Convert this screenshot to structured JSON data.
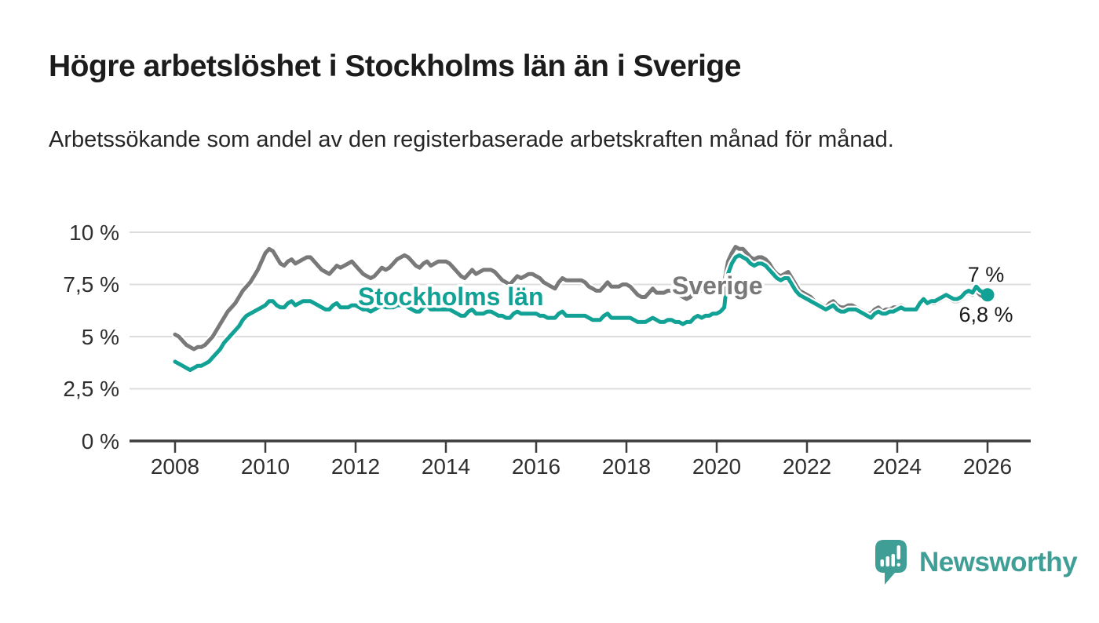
{
  "header": {
    "title": "Högre arbetslöshet i Stockholms län än i Sverige",
    "subtitle": "Arbetssökande som andel av den registerbaserade arbetskraften månad för månad."
  },
  "chart_data": {
    "type": "line",
    "title": "Högre arbetslöshet i Stockholms län än i Sverige",
    "xlabel": "",
    "ylabel": "",
    "unit": "%",
    "ylim": [
      0,
      10
    ],
    "grid": true,
    "x_interval": "monthly",
    "x_range": [
      "2008-01",
      "2026-01"
    ],
    "x_tick_labels": [
      "2008",
      "2010",
      "2012",
      "2014",
      "2016",
      "2018",
      "2020",
      "2022",
      "2024",
      "2026"
    ],
    "y_tick_labels_top_to_bottom": [
      "10 %",
      "7,5 %",
      "5 %",
      "2,5 %",
      "0 %"
    ],
    "series": [
      {
        "id": "sverige",
        "name": "Sverige",
        "color": "#797979",
        "end_label": "6,8 %",
        "end_value": 6.8,
        "values": [
          5.1,
          5.0,
          4.8,
          4.6,
          4.5,
          4.4,
          4.5,
          4.5,
          4.6,
          4.8,
          5.0,
          5.3,
          5.6,
          5.9,
          6.2,
          6.4,
          6.6,
          6.9,
          7.2,
          7.4,
          7.6,
          7.9,
          8.2,
          8.6,
          9.0,
          9.2,
          9.1,
          8.8,
          8.5,
          8.4,
          8.6,
          8.7,
          8.5,
          8.6,
          8.7,
          8.8,
          8.8,
          8.6,
          8.4,
          8.2,
          8.1,
          8.0,
          8.2,
          8.4,
          8.3,
          8.4,
          8.5,
          8.6,
          8.4,
          8.2,
          8.0,
          7.9,
          7.8,
          7.9,
          8.1,
          8.3,
          8.2,
          8.3,
          8.5,
          8.7,
          8.8,
          8.9,
          8.8,
          8.6,
          8.4,
          8.3,
          8.5,
          8.6,
          8.4,
          8.5,
          8.6,
          8.6,
          8.6,
          8.5,
          8.3,
          8.1,
          7.9,
          7.8,
          8.0,
          8.2,
          8.0,
          8.1,
          8.2,
          8.2,
          8.2,
          8.1,
          7.9,
          7.7,
          7.6,
          7.5,
          7.7,
          7.9,
          7.8,
          7.9,
          8.0,
          8.0,
          7.9,
          7.8,
          7.6,
          7.5,
          7.4,
          7.3,
          7.6,
          7.8,
          7.7,
          7.7,
          7.7,
          7.7,
          7.7,
          7.6,
          7.4,
          7.3,
          7.2,
          7.2,
          7.4,
          7.6,
          7.4,
          7.4,
          7.4,
          7.5,
          7.5,
          7.4,
          7.2,
          7.0,
          6.9,
          6.9,
          7.1,
          7.3,
          7.1,
          7.1,
          7.1,
          7.2,
          7.2,
          7.1,
          7.0,
          6.9,
          6.8,
          6.9,
          7.1,
          7.3,
          7.2,
          7.3,
          7.3,
          7.4,
          7.4,
          7.4,
          7.6,
          8.6,
          9.0,
          9.3,
          9.2,
          9.2,
          9.0,
          8.8,
          8.7,
          8.8,
          8.8,
          8.7,
          8.5,
          8.2,
          8.0,
          7.9,
          8.0,
          8.1,
          7.8,
          7.5,
          7.2,
          7.1,
          7.0,
          6.9,
          6.7,
          6.6,
          6.5,
          6.4,
          6.6,
          6.7,
          6.5,
          6.4,
          6.4,
          6.5,
          6.5,
          6.4,
          6.3,
          6.2,
          6.1,
          6.1,
          6.3,
          6.4,
          6.2,
          6.3,
          6.3,
          6.4,
          6.4,
          6.5,
          6.4,
          6.3,
          6.3,
          6.3,
          6.5,
          6.7,
          6.6,
          6.6,
          6.6,
          6.7,
          6.8,
          6.9,
          6.8,
          6.7,
          6.7,
          6.8,
          7.0,
          7.1,
          7.0,
          7.2,
          7.0,
          6.9,
          6.8
        ]
      },
      {
        "id": "stockholm",
        "name": "Stockholms län",
        "color": "#12a195",
        "end_label": "7 %",
        "end_value": 7.0,
        "end_dot": true,
        "values": [
          3.8,
          3.7,
          3.6,
          3.5,
          3.4,
          3.5,
          3.6,
          3.6,
          3.7,
          3.8,
          4.0,
          4.2,
          4.4,
          4.7,
          4.9,
          5.1,
          5.3,
          5.5,
          5.8,
          6.0,
          6.1,
          6.2,
          6.3,
          6.4,
          6.5,
          6.7,
          6.7,
          6.5,
          6.4,
          6.4,
          6.6,
          6.7,
          6.5,
          6.6,
          6.7,
          6.7,
          6.7,
          6.6,
          6.5,
          6.4,
          6.3,
          6.3,
          6.5,
          6.6,
          6.4,
          6.4,
          6.4,
          6.5,
          6.5,
          6.4,
          6.3,
          6.3,
          6.2,
          6.3,
          6.4,
          6.5,
          6.4,
          6.4,
          6.4,
          6.5,
          6.5,
          6.5,
          6.4,
          6.3,
          6.2,
          6.2,
          6.4,
          6.5,
          6.3,
          6.3,
          6.3,
          6.3,
          6.3,
          6.3,
          6.2,
          6.1,
          6.0,
          6.0,
          6.2,
          6.3,
          6.1,
          6.1,
          6.1,
          6.2,
          6.2,
          6.1,
          6.0,
          6.0,
          5.9,
          5.9,
          6.1,
          6.2,
          6.1,
          6.1,
          6.1,
          6.1,
          6.1,
          6.0,
          6.0,
          5.9,
          5.9,
          5.9,
          6.1,
          6.2,
          6.0,
          6.0,
          6.0,
          6.0,
          6.0,
          6.0,
          5.9,
          5.8,
          5.8,
          5.8,
          6.0,
          6.1,
          5.9,
          5.9,
          5.9,
          5.9,
          5.9,
          5.9,
          5.8,
          5.7,
          5.7,
          5.7,
          5.8,
          5.9,
          5.8,
          5.7,
          5.7,
          5.8,
          5.8,
          5.7,
          5.7,
          5.6,
          5.7,
          5.7,
          5.9,
          6.0,
          5.9,
          6.0,
          6.0,
          6.1,
          6.1,
          6.2,
          6.4,
          8.0,
          8.5,
          8.8,
          8.9,
          8.8,
          8.7,
          8.5,
          8.4,
          8.5,
          8.5,
          8.4,
          8.2,
          8.0,
          7.8,
          7.7,
          7.8,
          7.8,
          7.5,
          7.2,
          7.0,
          6.9,
          6.8,
          6.7,
          6.6,
          6.5,
          6.4,
          6.3,
          6.4,
          6.5,
          6.3,
          6.2,
          6.2,
          6.3,
          6.3,
          6.3,
          6.2,
          6.1,
          6.0,
          5.9,
          6.1,
          6.2,
          6.1,
          6.1,
          6.2,
          6.2,
          6.3,
          6.4,
          6.3,
          6.3,
          6.3,
          6.3,
          6.6,
          6.8,
          6.6,
          6.7,
          6.7,
          6.8,
          6.9,
          7.0,
          6.9,
          6.8,
          6.8,
          6.9,
          7.1,
          7.2,
          7.1,
          7.4,
          7.2,
          7.1,
          7.0
        ]
      }
    ],
    "legend_position": "inline-labels"
  },
  "branding": {
    "logo_text": "Newsworthy",
    "logo_color": "#3f9e96",
    "logo_icon": "bar-chart-speech-bubble-icon"
  },
  "colors": {
    "stockholm_line": "#12a195",
    "sverige_line": "#797979",
    "grid": "#dcdcdc",
    "axis": "#3d3d3d",
    "text": "#1c1c1c"
  }
}
